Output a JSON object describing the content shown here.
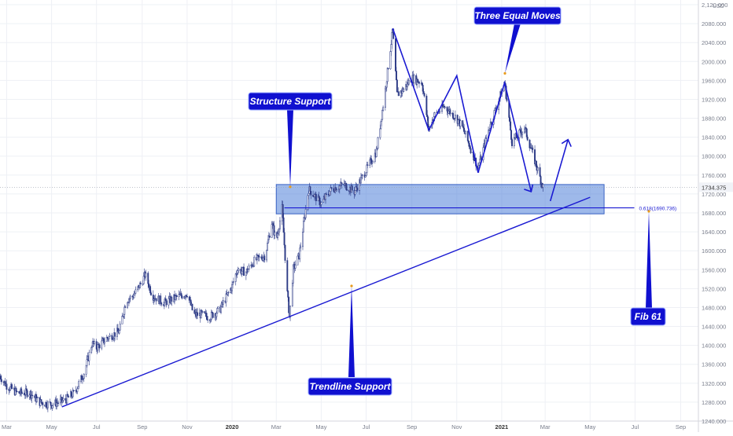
{
  "chart_data": {
    "type": "candlestick",
    "currency": "USD",
    "last_price": "1734.375",
    "y_axis": {
      "ticks": [
        2120,
        2080,
        2040,
        2000,
        1960,
        1920,
        1880,
        1840,
        1800,
        1760,
        1720,
        1680,
        1640,
        1600,
        1560,
        1520,
        1480,
        1440,
        1400,
        1360,
        1320,
        1280,
        1240
      ],
      "tick_labels": [
        "2,120.000",
        "2080.000",
        "2040.000",
        "2000.000",
        "1960.000",
        "1920.000",
        "1880.000",
        "1840.000",
        "1800.000",
        "1760.000",
        "1720.000",
        "1680.000",
        "1640.000",
        "1600.000",
        "1560.000",
        "1520.000",
        "1480.000",
        "1440.000",
        "1400.000",
        "1360.000",
        "1320.000",
        "1280.000",
        "1240.000"
      ],
      "ylim": [
        1240,
        2130
      ]
    },
    "x_axis": {
      "range": [
        "2019-02-20",
        "2021-09-25"
      ],
      "ticks": [
        {
          "date": "2019-03-01",
          "label": "Mar",
          "bold": false
        },
        {
          "date": "2019-05-01",
          "label": "May",
          "bold": false
        },
        {
          "date": "2019-07-01",
          "label": "Jul",
          "bold": false
        },
        {
          "date": "2019-09-01",
          "label": "Sep",
          "bold": false
        },
        {
          "date": "2019-11-01",
          "label": "Nov",
          "bold": false
        },
        {
          "date": "2020-01-01",
          "label": "2020",
          "bold": true
        },
        {
          "date": "2020-03-01",
          "label": "Mar",
          "bold": false
        },
        {
          "date": "2020-05-01",
          "label": "May",
          "bold": false
        },
        {
          "date": "2020-07-01",
          "label": "Jul",
          "bold": false
        },
        {
          "date": "2020-09-01",
          "label": "Sep",
          "bold": false
        },
        {
          "date": "2020-11-01",
          "label": "Nov",
          "bold": false
        },
        {
          "date": "2021-01-01",
          "label": "2021",
          "bold": true
        },
        {
          "date": "2021-03-01",
          "label": "Mar",
          "bold": false
        },
        {
          "date": "2021-05-01",
          "label": "May",
          "bold": false
        },
        {
          "date": "2021-07-01",
          "label": "Jul",
          "bold": false
        },
        {
          "date": "2021-09-01",
          "label": "Sep",
          "bold": false
        }
      ]
    },
    "price_path": [
      [
        "2019-02-20",
        1335
      ],
      [
        "2019-03-01",
        1315
      ],
      [
        "2019-03-15",
        1300
      ],
      [
        "2019-04-01",
        1300
      ],
      [
        "2019-04-15",
        1280
      ],
      [
        "2019-05-01",
        1275
      ],
      [
        "2019-05-20",
        1285
      ],
      [
        "2019-06-01",
        1300
      ],
      [
        "2019-06-15",
        1345
      ],
      [
        "2019-06-25",
        1405
      ],
      [
        "2019-07-01",
        1395
      ],
      [
        "2019-07-15",
        1415
      ],
      [
        "2019-08-01",
        1430
      ],
      [
        "2019-08-10",
        1495
      ],
      [
        "2019-08-20",
        1505
      ],
      [
        "2019-09-01",
        1535
      ],
      [
        "2019-09-05",
        1550
      ],
      [
        "2019-09-15",
        1505
      ],
      [
        "2019-10-01",
        1490
      ],
      [
        "2019-10-15",
        1500
      ],
      [
        "2019-11-01",
        1510
      ],
      [
        "2019-11-10",
        1465
      ],
      [
        "2019-11-20",
        1465
      ],
      [
        "2019-12-01",
        1460
      ],
      [
        "2019-12-15",
        1475
      ],
      [
        "2020-01-01",
        1525
      ],
      [
        "2020-01-08",
        1560
      ],
      [
        "2020-01-20",
        1555
      ],
      [
        "2020-02-01",
        1580
      ],
      [
        "2020-02-15",
        1590
      ],
      [
        "2020-02-24",
        1660
      ],
      [
        "2020-03-01",
        1620
      ],
      [
        "2020-03-09",
        1690
      ],
      [
        "2020-03-16",
        1510
      ],
      [
        "2020-03-19",
        1460
      ],
      [
        "2020-03-24",
        1560
      ],
      [
        "2020-04-01",
        1590
      ],
      [
        "2020-04-14",
        1730
      ],
      [
        "2020-05-01",
        1700
      ],
      [
        "2020-05-15",
        1730
      ],
      [
        "2020-06-01",
        1740
      ],
      [
        "2020-06-15",
        1725
      ],
      [
        "2020-07-01",
        1770
      ],
      [
        "2020-07-15",
        1810
      ],
      [
        "2020-07-27",
        1940
      ],
      [
        "2020-08-06",
        2065
      ],
      [
        "2020-08-12",
        1930
      ],
      [
        "2020-08-20",
        1940
      ],
      [
        "2020-09-01",
        1965
      ],
      [
        "2020-09-15",
        1955
      ],
      [
        "2020-09-24",
        1855
      ],
      [
        "2020-10-01",
        1885
      ],
      [
        "2020-10-15",
        1905
      ],
      [
        "2020-11-01",
        1880
      ],
      [
        "2020-11-09",
        1860
      ],
      [
        "2020-11-30",
        1775
      ],
      [
        "2020-12-15",
        1860
      ],
      [
        "2021-01-05",
        1955
      ],
      [
        "2021-01-15",
        1830
      ],
      [
        "2021-02-01",
        1860
      ],
      [
        "2021-02-15",
        1790
      ],
      [
        "2021-02-26",
        1735
      ]
    ],
    "annotations": {
      "structure_support": "Structure Support",
      "three_equal_moves": "Three Equal Moves",
      "trendline_support": "Trendline Support",
      "fib_61": "Fib 61",
      "fib_label": "0.618(1690.736)"
    },
    "support_zone": {
      "x0": "2020-03-01",
      "x1": "2021-05-20",
      "y_top": 1740,
      "y_bottom": 1678
    },
    "fib_level": {
      "x0": "2020-03-12",
      "x1": "2021-06-30",
      "y": 1690.736
    },
    "trendline": {
      "x0": "2019-05-15",
      "y0": 1270,
      "x1": "2021-05-01",
      "y1": 1713
    },
    "three_moves": [
      [
        "2020-08-06",
        2070
      ],
      [
        "2020-09-24",
        1855
      ],
      [
        "2020-11-01",
        1970
      ],
      [
        "2020-11-30",
        1765
      ],
      [
        "2021-01-05",
        1955
      ],
      [
        "2021-02-10",
        1725
      ]
    ],
    "projection_arrow": {
      "x0": "2021-03-08",
      "y0": 1705,
      "x1": "2021-04-01",
      "y1": 1835
    },
    "colors": {
      "candle": "#2c3a86",
      "drawing": "#1a1ad2",
      "zone_fill": "#4f7fd9",
      "callout_bg": "#1010d0",
      "callout_text": "#ffffff",
      "grid": "#eef0f5",
      "axis_text": "#7a7f8d"
    }
  }
}
